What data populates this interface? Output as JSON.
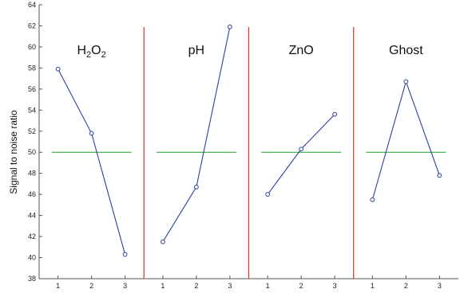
{
  "chart_data": {
    "type": "line",
    "ylabel": "Signal to noise ratio",
    "ylim": [
      38,
      64
    ],
    "yticks": [
      "38",
      "40",
      "42",
      "44",
      "46",
      "48",
      "50",
      "52",
      "54",
      "56",
      "58",
      "60",
      "62",
      "64"
    ],
    "x": [
      1,
      2,
      3
    ],
    "xtick_labels": [
      "1",
      "2",
      "3"
    ],
    "reference_value": 50,
    "colors": {
      "series": "#2b3fa0",
      "reference": "#1f9a2a",
      "separator": "#e0302a",
      "axis": "#555555"
    },
    "panels": [
      {
        "title": "H2O2",
        "title_parts": [
          {
            "t": "H",
            "sub": false
          },
          {
            "t": "2",
            "sub": true
          },
          {
            "t": "O",
            "sub": false
          },
          {
            "t": "2",
            "sub": true
          }
        ],
        "values": [
          57.9,
          51.8,
          40.3
        ]
      },
      {
        "title": "pH",
        "title_parts": [
          {
            "t": "pH",
            "sub": false
          }
        ],
        "values": [
          41.5,
          46.7,
          61.9
        ]
      },
      {
        "title": "ZnO",
        "title_parts": [
          {
            "t": "ZnO",
            "sub": false
          }
        ],
        "values": [
          46.0,
          50.3,
          53.6
        ]
      },
      {
        "title": "Ghost",
        "title_parts": [
          {
            "t": "Ghost",
            "sub": false
          }
        ],
        "values": [
          45.5,
          56.7,
          47.8
        ]
      }
    ]
  }
}
